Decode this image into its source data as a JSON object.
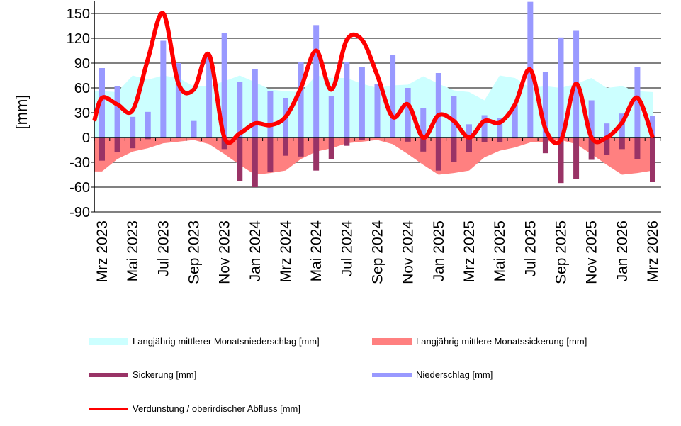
{
  "chart_data": {
    "type": "bar",
    "title": "",
    "ylabel": "[mm]",
    "xlabel": "",
    "ylim": [
      -90,
      150
    ],
    "yticks": [
      -90,
      -60,
      -30,
      0,
      30,
      60,
      90,
      120,
      150
    ],
    "grid": true,
    "categories": [
      "Mrz 2023",
      "Apr 2023",
      "Mai 2023",
      "Jun 2023",
      "Jul 2023",
      "Aug 2023",
      "Sep 2023",
      "Okt 2023",
      "Nov 2023",
      "Dez 2023",
      "Jan 2024",
      "Feb 2024",
      "Mrz 2024",
      "Apr 2024",
      "Mai 2024",
      "Jun 2024",
      "Jul 2024",
      "Aug 2024",
      "Sep 2024",
      "Okt 2024",
      "Nov 2024",
      "Dez 2024",
      "Jan 2025",
      "Feb 2025",
      "Mrz 2025",
      "Apr 2025",
      "Mai 2025",
      "Jun 2025",
      "Jul 2025",
      "Aug 2025",
      "Sep 2025",
      "Okt 2025",
      "Nov 2025",
      "Dez 2025",
      "Jan 2026",
      "Feb 2026",
      "Mrz 2026"
    ],
    "xtick_labels": [
      "Mrz 2023",
      "Mai 2023",
      "Jul 2023",
      "Sep 2023",
      "Nov 2023",
      "Jan 2024",
      "Mrz 2024",
      "Mai 2024",
      "Jul 2024",
      "Sep 2024",
      "Nov 2024",
      "Jan 2025",
      "Mrz 2025",
      "Mai 2025",
      "Jul 2025",
      "Sep 2025",
      "Nov 2025",
      "Jan 2026",
      "Mrz 2026"
    ],
    "series": [
      {
        "name": "Langjährig mittlerer Monatsniederschlag [mm]",
        "kind": "area",
        "color": "#ccffff",
        "values": [
          56,
          55,
          75,
          70,
          75,
          72,
          62,
          62,
          68,
          75,
          67,
          58,
          56,
          55,
          75,
          72,
          72,
          65,
          60,
          63,
          64,
          74,
          65,
          57,
          55,
          45,
          75,
          72,
          60,
          62,
          60,
          65,
          72,
          60,
          62,
          56,
          55
        ]
      },
      {
        "name": "Langjährig mittlere Monatssickerung [mm]",
        "kind": "area",
        "color": "#ff8080",
        "values": [
          -41,
          -26,
          -17,
          -13,
          -7,
          -5,
          -3,
          -8,
          -20,
          -33,
          -45,
          -43,
          -40,
          -26,
          -17,
          -13,
          -7,
          -5,
          -3,
          -8,
          -20,
          -33,
          -45,
          -43,
          -40,
          -24,
          -16,
          -12,
          -6,
          -5,
          -3,
          -8,
          -20,
          -33,
          -45,
          -43,
          -40
        ]
      },
      {
        "name": "Sickerung [mm]",
        "kind": "bar",
        "color": "#993366",
        "values": [
          -28,
          -18,
          -13,
          -2,
          0,
          0,
          0,
          0,
          -14,
          -53,
          -60,
          -42,
          -22,
          -23,
          -40,
          -26,
          -10,
          -3,
          0,
          0,
          -5,
          -17,
          -40,
          -30,
          -18,
          -6,
          -6,
          -1,
          0,
          -19,
          -55,
          -50,
          -27,
          -21,
          -14,
          -26,
          -54
        ]
      },
      {
        "name": "Niederschlag [mm]",
        "kind": "bar",
        "color": "#9999ff",
        "values": [
          84,
          62,
          25,
          31,
          117,
          90,
          20,
          100,
          126,
          67,
          83,
          56,
          48,
          91,
          136,
          50,
          91,
          85,
          65,
          100,
          60,
          36,
          78,
          50,
          16,
          27,
          24,
          40,
          164,
          79,
          121,
          129,
          45,
          17,
          29,
          85,
          26
        ]
      },
      {
        "name": "Verdunstung / oberirdischer Abfluss [mm]",
        "kind": "line",
        "color": "#ff0000",
        "values": [
          48,
          40,
          33,
          95,
          150,
          65,
          58,
          100,
          0,
          5,
          17,
          15,
          25,
          60,
          105,
          58,
          118,
          118,
          75,
          25,
          40,
          0,
          27,
          20,
          0,
          20,
          18,
          40,
          82,
          10,
          -3,
          65,
          0,
          0,
          18,
          48,
          0
        ]
      }
    ],
    "legend_placement": "bottom"
  }
}
